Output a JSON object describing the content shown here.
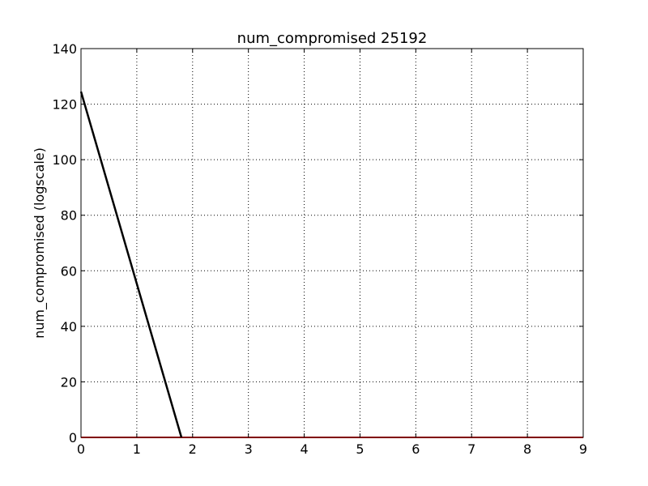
{
  "chart_data": {
    "type": "line",
    "title": "num_compromised 25192",
    "xlabel": "",
    "ylabel": "num_compromised (logscale)",
    "xlim": [
      0,
      9
    ],
    "ylim": [
      0,
      140
    ],
    "xticks": [
      0,
      1,
      2,
      3,
      4,
      5,
      6,
      7,
      8,
      9
    ],
    "yticks": [
      0,
      20,
      40,
      60,
      80,
      100,
      120,
      140
    ],
    "grid": true,
    "series": [
      {
        "color": "#000000",
        "x": [
          0,
          1.8
        ],
        "y": [
          124.5,
          0
        ]
      },
      {
        "color": "#ff0000",
        "x": [
          0,
          9
        ],
        "y": [
          0,
          0
        ]
      }
    ]
  }
}
